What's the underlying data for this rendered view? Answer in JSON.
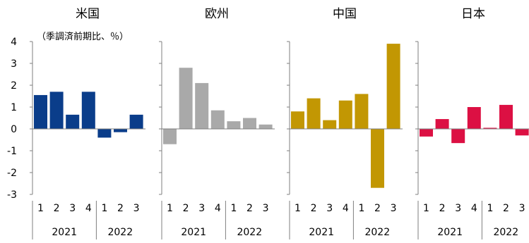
{
  "chart_data": {
    "type": "bar",
    "note": "（季調済前期比、％）",
    "ylim": [
      -3,
      4
    ],
    "yticks": [
      -3,
      -2,
      -1,
      0,
      1,
      2,
      3,
      4
    ],
    "categories": [
      "1",
      "2",
      "3",
      "4",
      "1",
      "2",
      "3"
    ],
    "years": [
      {
        "label": "2021",
        "quarters": 4
      },
      {
        "label": "2022",
        "quarters": 3
      }
    ],
    "panels": [
      {
        "title": "米国",
        "color": "#0a3d8a",
        "values": [
          1.55,
          1.7,
          0.65,
          1.7,
          -0.4,
          -0.15,
          0.65
        ]
      },
      {
        "title": "欧州",
        "color": "#a9a9a9",
        "values": [
          -0.7,
          2.8,
          2.1,
          0.85,
          0.35,
          0.5,
          0.2
        ]
      },
      {
        "title": "中国",
        "color": "#c29703",
        "values": [
          0.8,
          1.4,
          0.4,
          1.3,
          1.6,
          -2.7,
          3.9
        ]
      },
      {
        "title": "日本",
        "color": "#dc1043",
        "values": [
          -0.35,
          0.45,
          -0.65,
          1.0,
          0.05,
          1.1,
          -0.3
        ]
      }
    ]
  }
}
